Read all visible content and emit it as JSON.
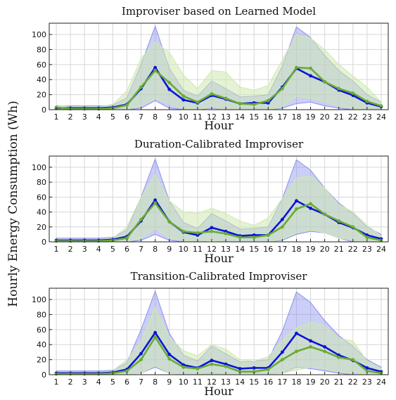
{
  "ylabel": "Hourly Energy Consumption (Wh)",
  "colors": {
    "blue_line": "#0a14d8",
    "blue_band": "#8b93ec",
    "blue_inner": "#b7b6f2",
    "green_line": "#6aab35",
    "green_band": "#cfe8b0",
    "grid": "#d6d6d6",
    "axis": "#222222"
  },
  "chart_data": [
    {
      "type": "line",
      "title": "Improviser based on Learned Model",
      "xlabel": "Hour",
      "categories": [
        "1",
        "2",
        "3",
        "4",
        "5",
        "6",
        "7",
        "8",
        "9",
        "10",
        "11",
        "12",
        "13",
        "14",
        "15",
        "16",
        "17",
        "18",
        "19",
        "20",
        "21",
        "22",
        "23",
        "24"
      ],
      "ylim": [
        0,
        115
      ],
      "yticks": [
        0,
        20,
        40,
        60,
        80,
        100
      ],
      "grid": true,
      "series": [
        {
          "color": "blue",
          "values": [
            2,
            2,
            2,
            2,
            3,
            7,
            28,
            56,
            27,
            13,
            9,
            19,
            14,
            8,
            9,
            9,
            30,
            55,
            45,
            37,
            26,
            19,
            9,
            4
          ],
          "band_lower": [
            0,
            0,
            0,
            0,
            0,
            0,
            2,
            12,
            2,
            0,
            0,
            2,
            0,
            0,
            0,
            0,
            2,
            8,
            10,
            5,
            2,
            0,
            0,
            0
          ],
          "band_upper": [
            5,
            5,
            5,
            5,
            6,
            16,
            60,
            111,
            55,
            26,
            18,
            38,
            28,
            17,
            18,
            20,
            58,
            110,
            96,
            72,
            52,
            38,
            20,
            10
          ]
        },
        {
          "color": "green",
          "values": [
            3,
            1,
            1,
            1,
            2,
            6,
            30,
            52,
            36,
            18,
            10,
            21,
            15,
            8,
            7,
            12,
            28,
            56,
            55,
            37,
            28,
            22,
            11,
            5
          ],
          "band_lower": [
            0,
            0,
            0,
            0,
            0,
            0,
            5,
            15,
            8,
            2,
            0,
            3,
            0,
            0,
            0,
            0,
            3,
            18,
            15,
            10,
            5,
            2,
            0,
            0
          ],
          "band_upper": [
            6,
            4,
            4,
            4,
            7,
            25,
            68,
            90,
            76,
            46,
            28,
            52,
            50,
            30,
            26,
            32,
            66,
            100,
            95,
            80,
            60,
            45,
            30,
            10
          ]
        }
      ]
    },
    {
      "type": "line",
      "title": "Duration-Calibrated Improviser",
      "xlabel": "Hour",
      "categories": [
        "1",
        "2",
        "3",
        "4",
        "5",
        "6",
        "7",
        "8",
        "9",
        "10",
        "11",
        "12",
        "13",
        "14",
        "15",
        "16",
        "17",
        "18",
        "19",
        "20",
        "21",
        "22",
        "23",
        "24"
      ],
      "ylim": [
        0,
        115
      ],
      "yticks": [
        0,
        20,
        40,
        60,
        80,
        100
      ],
      "grid": true,
      "series": [
        {
          "color": "blue",
          "values": [
            2,
            2,
            2,
            2,
            3,
            7,
            28,
            56,
            27,
            13,
            9,
            19,
            14,
            8,
            9,
            9,
            30,
            55,
            45,
            37,
            26,
            19,
            9,
            4
          ],
          "band_lower": [
            0,
            0,
            0,
            0,
            0,
            0,
            2,
            10,
            2,
            0,
            0,
            2,
            0,
            0,
            0,
            0,
            2,
            10,
            14,
            12,
            5,
            0,
            0,
            0
          ],
          "band_upper": [
            5,
            5,
            5,
            5,
            6,
            16,
            60,
            111,
            55,
            26,
            18,
            38,
            28,
            17,
            18,
            20,
            58,
            110,
            96,
            72,
            52,
            38,
            20,
            10
          ]
        },
        {
          "color": "green",
          "values": [
            1,
            1,
            1,
            1,
            2,
            5,
            30,
            52,
            27,
            14,
            12,
            14,
            11,
            6,
            6,
            9,
            20,
            44,
            51,
            37,
            28,
            20,
            6,
            2
          ],
          "band_lower": [
            0,
            0,
            0,
            0,
            0,
            0,
            5,
            18,
            5,
            2,
            0,
            2,
            0,
            0,
            0,
            0,
            3,
            12,
            16,
            12,
            5,
            2,
            0,
            0
          ],
          "band_upper": [
            4,
            3,
            3,
            3,
            5,
            20,
            60,
            90,
            55,
            40,
            38,
            45,
            38,
            28,
            22,
            32,
            58,
            86,
            88,
            72,
            50,
            40,
            22,
            8
          ]
        }
      ]
    },
    {
      "type": "line",
      "title": "Transition-Calibrated Improviser",
      "xlabel": "Hour",
      "categories": [
        "1",
        "2",
        "3",
        "4",
        "5",
        "6",
        "7",
        "8",
        "9",
        "10",
        "11",
        "12",
        "13",
        "14",
        "15",
        "16",
        "17",
        "18",
        "19",
        "20",
        "21",
        "22",
        "23",
        "24"
      ],
      "ylim": [
        0,
        115
      ],
      "yticks": [
        0,
        20,
        40,
        60,
        80,
        100
      ],
      "grid": true,
      "series": [
        {
          "color": "blue",
          "values": [
            2,
            2,
            2,
            2,
            3,
            7,
            28,
            56,
            27,
            13,
            9,
            19,
            14,
            8,
            9,
            9,
            30,
            55,
            45,
            37,
            26,
            19,
            9,
            4
          ],
          "band_lower": [
            0,
            0,
            0,
            0,
            0,
            0,
            2,
            10,
            2,
            0,
            0,
            2,
            0,
            0,
            0,
            0,
            2,
            10,
            8,
            5,
            2,
            0,
            0,
            0
          ],
          "band_upper": [
            5,
            5,
            5,
            5,
            6,
            16,
            60,
            111,
            55,
            26,
            18,
            38,
            28,
            17,
            18,
            20,
            58,
            110,
            96,
            72,
            52,
            38,
            20,
            10
          ]
        },
        {
          "color": "green",
          "values": [
            1,
            1,
            1,
            1,
            2,
            5,
            20,
            50,
            21,
            10,
            8,
            14,
            11,
            4,
            4,
            7,
            20,
            31,
            37,
            31,
            23,
            20,
            5,
            2
          ],
          "band_lower": [
            0,
            0,
            0,
            0,
            0,
            0,
            2,
            12,
            2,
            0,
            0,
            1,
            0,
            0,
            0,
            0,
            2,
            6,
            10,
            8,
            4,
            2,
            0,
            0
          ],
          "band_upper": [
            3,
            3,
            3,
            3,
            5,
            20,
            45,
            90,
            50,
            32,
            25,
            40,
            34,
            20,
            18,
            24,
            46,
            62,
            70,
            65,
            48,
            45,
            18,
            8
          ]
        }
      ]
    }
  ]
}
